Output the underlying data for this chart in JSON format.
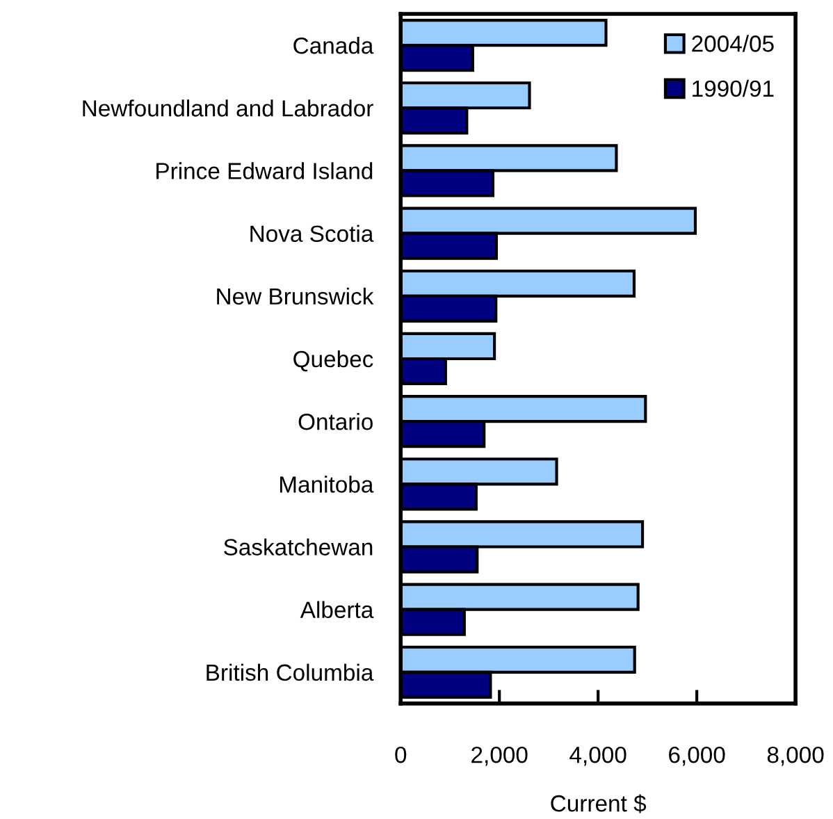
{
  "chart_data": {
    "type": "bar",
    "orientation": "horizontal",
    "xlabel": "Current $",
    "categories": [
      "Canada",
      "Newfoundland and Labrador",
      "Prince Edward Island",
      "Nova Scotia",
      "New Brunswick",
      "Quebec",
      "Ontario",
      "Manitoba",
      "Saskatchewan",
      "Alberta",
      "British Columbia"
    ],
    "series": [
      {
        "name": "2004/05",
        "color": "#99ccff",
        "values": [
          4160,
          2610,
          4370,
          5970,
          4730,
          1900,
          4960,
          3160,
          4900,
          4810,
          4740
        ]
      },
      {
        "name": "1990/91",
        "color": "#000080",
        "values": [
          1460,
          1340,
          1870,
          1940,
          1930,
          910,
          1690,
          1530,
          1550,
          1290,
          1820
        ]
      }
    ],
    "xlim": [
      0,
      8000
    ],
    "xticks": [
      {
        "value": 0,
        "label": "0"
      },
      {
        "value": 2000,
        "label": "2,000"
      },
      {
        "value": 4000,
        "label": "4,000"
      },
      {
        "value": 6000,
        "label": "6,000"
      },
      {
        "value": 8000,
        "label": "8,000"
      }
    ],
    "grid": false,
    "legend": "top right"
  }
}
